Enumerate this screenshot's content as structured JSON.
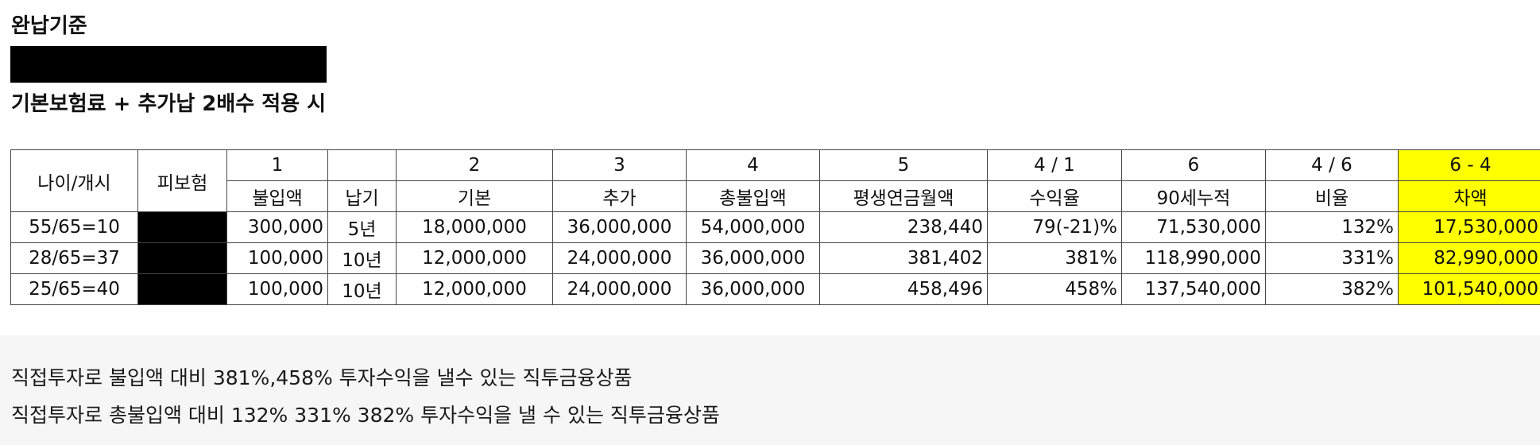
{
  "titles": {
    "line1": "완납기준",
    "line3": "기본보험료 + 추가납 2배수 적용 시"
  },
  "table": {
    "header_top": {
      "age": "나이/개시",
      "insured": "피보험",
      "c1": "1",
      "c2": "2",
      "c3": "3",
      "c4": "4",
      "c5": "5",
      "c41": "4 / 1",
      "c6": "6",
      "c46": "4 / 6",
      "c64": "6 - 4"
    },
    "header_bottom": {
      "payment": "불입액",
      "period": "납기",
      "basic": "기본",
      "extra": "추가",
      "total": "총불입액",
      "annuity": "평생연금월액",
      "yield": "수익율",
      "cumulative": "90세누적",
      "ratio": "비율",
      "difference": "차액"
    },
    "rows": [
      {
        "age": "55/65=10",
        "payment": "300,000",
        "period": "5년",
        "basic": "18,000,000",
        "extra": "36,000,000",
        "total": "54,000,000",
        "annuity": "238,440",
        "yield": "79(-21)%",
        "cumulative": "71,530,000",
        "ratio": "132%",
        "difference": "17,530,000"
      },
      {
        "age": "28/65=37",
        "payment": "100,000",
        "period": "10년",
        "basic": "12,000,000",
        "extra": "24,000,000",
        "total": "36,000,000",
        "annuity": "381,402",
        "yield": "381%",
        "cumulative": "118,990,000",
        "ratio": "331%",
        "difference": "82,990,000"
      },
      {
        "age": "25/65=40",
        "payment": "100,000",
        "period": "10년",
        "basic": "12,000,000",
        "extra": "24,000,000",
        "total": "36,000,000",
        "annuity": "458,496",
        "yield": "458%",
        "cumulative": "137,540,000",
        "ratio": "382%",
        "difference": "101,540,000"
      }
    ]
  },
  "footnotes": {
    "line1": "직접투자로 불입액 대비 381%,458% 투자수익을 낼수 있는 직투금융상품",
    "line2": "직접투자로 총불입액 대비 132% 331% 382% 투자수익을 낼 수 있는 직투금융상품"
  },
  "colors": {
    "highlight": "#ffff00",
    "redaction": "#000000"
  }
}
